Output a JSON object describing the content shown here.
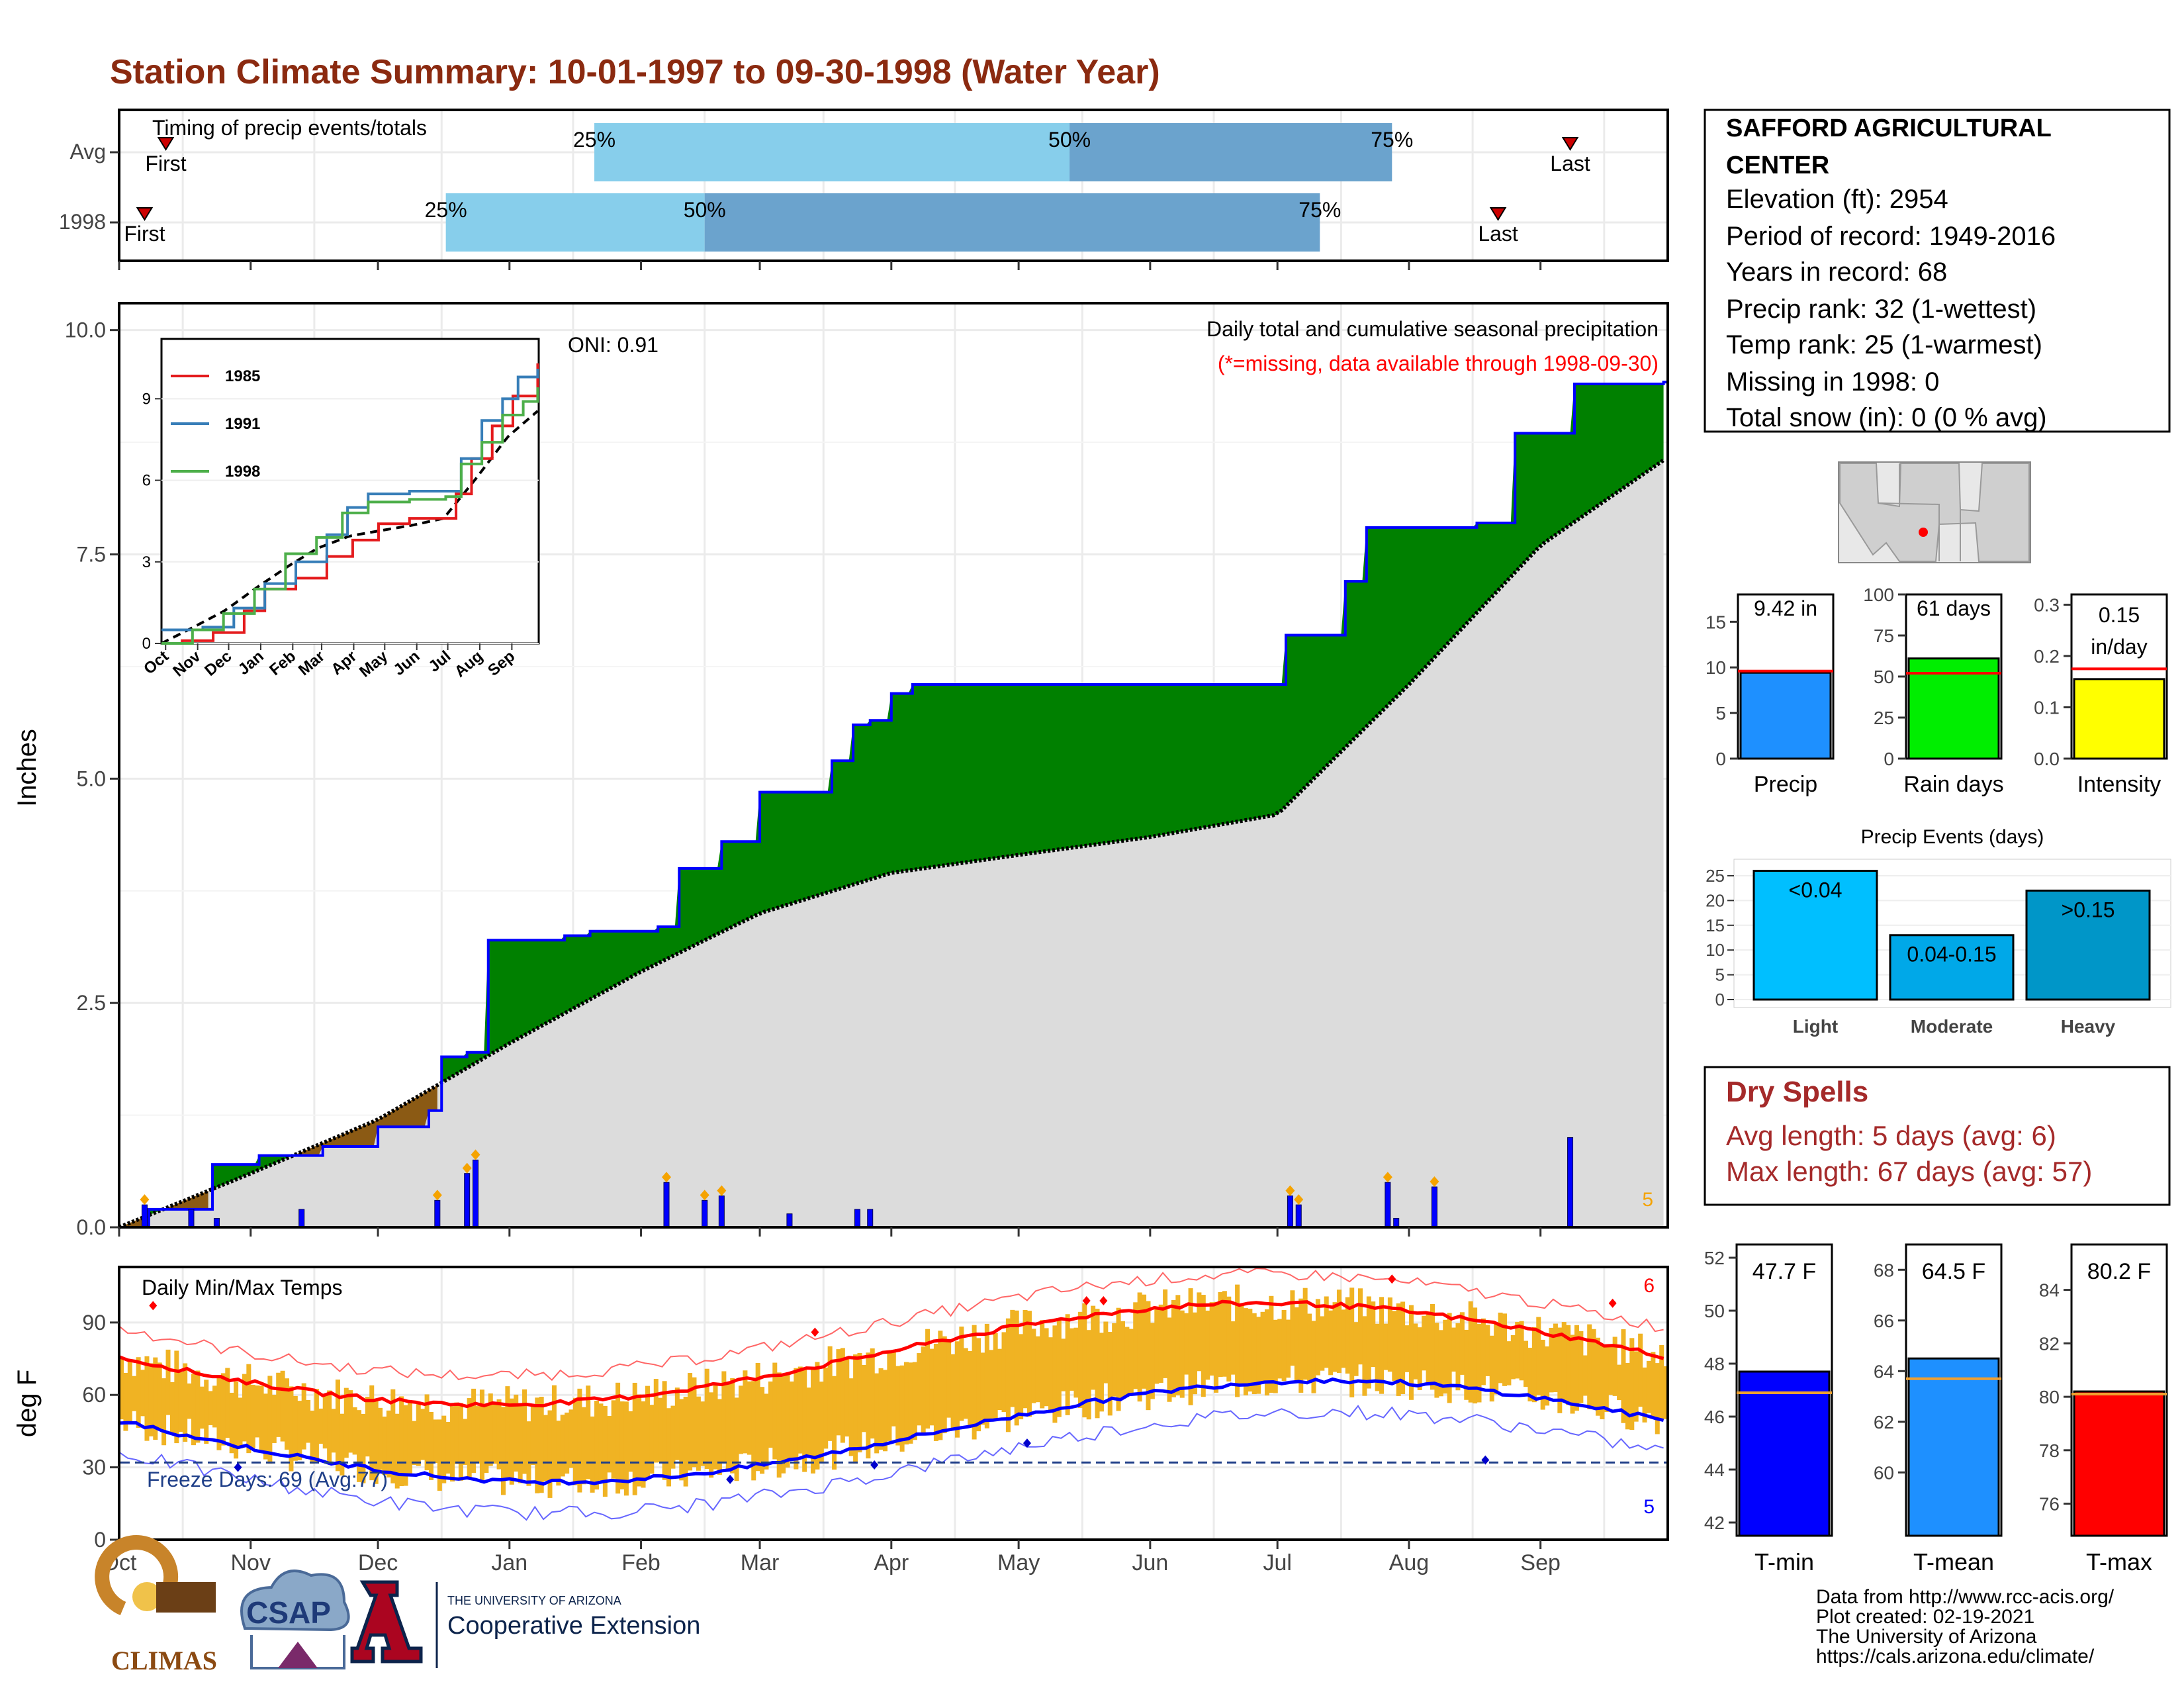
{
  "title": "Station Climate Summary: 10-01-1997 to 09-30-1998 (Water Year)",
  "timing": {
    "label": "Timing of precip events/totals",
    "rows": [
      {
        "name": "Avg",
        "first_day": 11,
        "q25": 112,
        "q50": 224,
        "q75": 300,
        "last_day": 342
      },
      {
        "name": "1998",
        "first_day": 6,
        "q25": 77,
        "q50": 138,
        "q75": 283,
        "last_day": 325
      }
    ],
    "first_label": "First",
    "last_label": "Last",
    "q_labels": [
      "25%",
      "50%",
      "75%"
    ]
  },
  "station": {
    "name_line1": "SAFFORD AGRICULTURAL",
    "name_line2": "CENTER",
    "elevation": "Elevation (ft): 2954",
    "period": "Period of record: 1949-2016",
    "years": "Years in record: 68",
    "precip_rank": "Precip rank: 32 (1-wettest)",
    "temp_rank": "Temp rank: 25 (1-warmest)",
    "missing": "Missing in 1998: 0",
    "snow": "Total snow (in): 0 (0 % avg)"
  },
  "precip_panel": {
    "ylabel": "Inches",
    "oni": "ONI: 0.91",
    "note1": "Daily total and cumulative seasonal precipitation",
    "note2": "(*=missing, data available through 1998-09-30)",
    "count_label": "5",
    "yticks": [
      "0.0",
      "2.5",
      "5.0",
      "7.5",
      "10.0"
    ]
  },
  "inset": {
    "legend": [
      "1985",
      "1991",
      "1998"
    ],
    "colors": [
      "#e41a1c",
      "#377eb8",
      "#4daf4a"
    ],
    "yticks": [
      "0",
      "3",
      "6",
      "9"
    ],
    "xticks": [
      "Oct",
      "Nov",
      "Dec",
      "Jan",
      "Feb",
      "Mar",
      "Apr",
      "May",
      "Jun",
      "Jul",
      "Aug",
      "Sep"
    ]
  },
  "temp_panel": {
    "label": "Daily Min/Max Temps",
    "ylabel": "deg F",
    "freeze": "Freeze Days: 69 (Avg:77)",
    "count_hi": "6",
    "count_lo": "5",
    "yticks": [
      "0",
      "30",
      "60",
      "90"
    ]
  },
  "months": [
    "Oct",
    "Nov",
    "Dec",
    "Jan",
    "Feb",
    "Mar",
    "Apr",
    "May",
    "Jun",
    "Jul",
    "Aug",
    "Sep"
  ],
  "stat_bars": [
    {
      "name": "Precip",
      "value_label": "9.42 in",
      "value": 9.42,
      "avg": 9.6,
      "ymax": 18,
      "ticks": [
        "0",
        "5",
        "10",
        "15"
      ],
      "color": "#1e90ff"
    },
    {
      "name": "Rain days",
      "value_label": "61 days",
      "value": 61,
      "avg": 52,
      "ymax": 100,
      "ticks": [
        "0",
        "25",
        "50",
        "75",
        "100"
      ],
      "color": "#00ee00"
    },
    {
      "name": "Intensity",
      "value_label1": "0.15",
      "value_label2": "in/day",
      "value": 0.155,
      "avg": 0.175,
      "ymax": 0.32,
      "ticks": [
        "0.0",
        "0.1",
        "0.2",
        "0.3"
      ],
      "color": "#ffff00"
    }
  ],
  "events": {
    "title": "Precip Events (days)",
    "categories": [
      "Light",
      "Moderate",
      "Heavy"
    ],
    "labels": [
      "<0.04",
      "0.04-0.15",
      ">0.15"
    ],
    "values": [
      26,
      13,
      22
    ],
    "ticks": [
      "0",
      "5",
      "10",
      "15",
      "20",
      "25"
    ],
    "colors": [
      "#00bfff",
      "#00a8e8",
      "#0096c8"
    ]
  },
  "dry_spells": {
    "title": "Dry Spells",
    "avg": "Avg length: 5 days (avg: 6)",
    "max": "Max length: 67 days (avg: 57)"
  },
  "temp_bars": [
    {
      "name": "T-min",
      "value_label": "47.7 F",
      "value": 47.7,
      "avg": 46.9,
      "ymin": 41.5,
      "ymax": 52.5,
      "ticks": [
        "42",
        "44",
        "46",
        "48",
        "50",
        "52"
      ],
      "color": "#0000ff"
    },
    {
      "name": "T-mean",
      "value_label": "64.5 F",
      "value": 64.5,
      "avg": 63.7,
      "ymin": 57.5,
      "ymax": 69,
      "ticks": [
        "60",
        "62",
        "64",
        "66",
        "68"
      ],
      "color": "#1e90ff"
    },
    {
      "name": "T-max",
      "value_label": "80.2 F",
      "value": 80.2,
      "avg": 80.1,
      "ymin": 74.8,
      "ymax": 85.7,
      "ticks": [
        "76",
        "78",
        "80",
        "82",
        "84"
      ],
      "color": "#ff0000"
    }
  ],
  "credits": {
    "line1": "Data from http://www.rcc-acis.org/",
    "line2": "Plot created: 02-19-2021",
    "line3": "The University of Arizona",
    "line4": "https://cals.arizona.edu/climate/",
    "logo_climas": "CLIMAS",
    "logo_csap": "CSAP",
    "logo_ua_small": "THE UNIVERSITY OF ARIZONA",
    "logo_ua_big": "Cooperative Extension"
  },
  "chart_data": {
    "type": "area",
    "title": "Daily total and cumulative seasonal precipitation",
    "ylabel": "Inches",
    "ylim": [
      0,
      10.3
    ],
    "series": [
      {
        "name": "1998",
        "x": [
          "10-01",
          "10-08",
          "10-23",
          "11-03",
          "11-18",
          "12-01",
          "12-03",
          "12-13",
          "12-16",
          "12-22",
          "12-27",
          "01-14",
          "01-20",
          "02-05",
          "02-10",
          "02-20",
          "03-01",
          "03-18",
          "03-23",
          "03-27",
          "04-01",
          "04-06",
          "06-30",
          "07-03",
          "07-13",
          "07-17",
          "07-22",
          "08-17",
          "08-26",
          "09-09",
          "09-30"
        ],
        "values": [
          0,
          0.2,
          0.7,
          0.8,
          0.9,
          1.12,
          1.12,
          1.3,
          1.9,
          1.95,
          3.2,
          3.25,
          3.3,
          3.35,
          4.0,
          4.3,
          4.85,
          5.2,
          5.6,
          5.65,
          5.95,
          6.05,
          6.05,
          6.6,
          6.6,
          7.2,
          7.8,
          7.85,
          8.85,
          9.4,
          9.42
        ]
      },
      {
        "name": "Avg",
        "x": [
          "10-01",
          "11-01",
          "12-01",
          "01-01",
          "02-01",
          "03-01",
          "04-01",
          "05-01",
          "06-01",
          "07-01",
          "08-01",
          "09-01",
          "09-30"
        ],
        "values": [
          0,
          0.6,
          1.2,
          2.05,
          2.85,
          3.5,
          3.95,
          4.15,
          4.35,
          4.6,
          6.05,
          7.6,
          8.55
        ]
      }
    ],
    "daily_precip_in": [
      {
        "date": "10-07",
        "value": 0.25
      },
      {
        "date": "10-18",
        "value": 0.2
      },
      {
        "date": "10-24",
        "value": 0.1
      },
      {
        "date": "11-13",
        "value": 0.2
      },
      {
        "date": "12-15",
        "value": 0.3
      },
      {
        "date": "12-22",
        "value": 0.6
      },
      {
        "date": "12-24",
        "value": 0.75
      },
      {
        "date": "02-07",
        "value": 0.5
      },
      {
        "date": "02-16",
        "value": 0.3
      },
      {
        "date": "02-20",
        "value": 0.35
      },
      {
        "date": "03-08",
        "value": 0.15
      },
      {
        "date": "03-24",
        "value": 0.2
      },
      {
        "date": "03-27",
        "value": 0.2
      },
      {
        "date": "07-04",
        "value": 0.35
      },
      {
        "date": "07-06",
        "value": 0.25
      },
      {
        "date": "07-27",
        "value": 0.5
      },
      {
        "date": "07-29",
        "value": 0.1
      },
      {
        "date": "08-07",
        "value": 0.45
      },
      {
        "date": "09-08",
        "value": 1.0
      }
    ]
  }
}
